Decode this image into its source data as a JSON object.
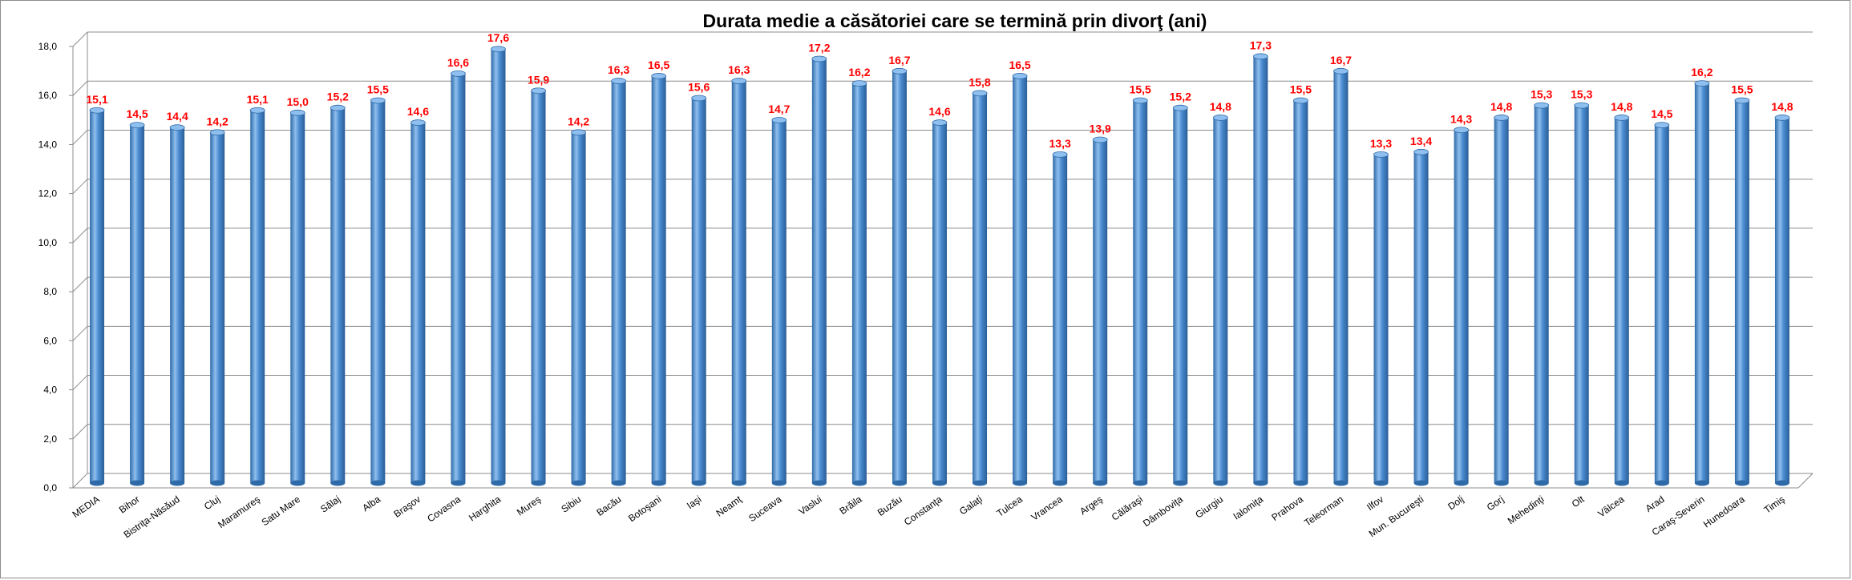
{
  "chart_data": {
    "type": "bar",
    "title": "Durata medie a căsătoriei care se termină prin divorţ (ani)",
    "xlabel": "",
    "ylabel": "",
    "ylim": [
      0,
      18
    ],
    "ytick_step": 2,
    "yticks": [
      "0,0",
      "2,0",
      "4,0",
      "6,0",
      "8,0",
      "10,0",
      "12,0",
      "14,0",
      "16,0",
      "18,0"
    ],
    "grid": true,
    "legend": "none",
    "colors": {
      "bar": "#4a8bd0",
      "bar_dark": "#2f6aa8",
      "bar_light": "#8fbfee",
      "label": "#ff0000",
      "grid": "#8c8c8c"
    },
    "categories": [
      "MEDIA",
      "Bihor",
      "Bistriţa-Năsăud",
      "Cluj",
      "Maramureş",
      "Satu Mare",
      "Sălaj",
      "Alba",
      "Braşov",
      "Covasna",
      "Harghita",
      "Mureş",
      "Sibiu",
      "Bacău",
      "Botoşani",
      "Iaşi",
      "Neamţ",
      "Suceava",
      "Vaslui",
      "Brăila",
      "Buzău",
      "Constanţa",
      "Galaţi",
      "Tulcea",
      "Vrancea",
      "Argeş",
      "Călăraşi",
      "Dâmboviţa",
      "Giurgiu",
      "Ialomiţa",
      "Prahova",
      "Teleorman",
      "Ilfov",
      "Mun. Bucureşti",
      "Dolj",
      "Gorj",
      "Mehedinţi",
      "Olt",
      "Vâlcea",
      "Arad",
      "Caraş-Severin",
      "Hunedoara",
      "Timiş"
    ],
    "values": [
      15.1,
      14.5,
      14.4,
      14.2,
      15.1,
      15.0,
      15.2,
      15.5,
      14.6,
      16.6,
      17.6,
      15.9,
      14.2,
      16.3,
      16.5,
      15.6,
      16.3,
      14.7,
      17.2,
      16.2,
      16.7,
      14.6,
      15.8,
      16.5,
      13.3,
      13.9,
      15.5,
      15.2,
      14.8,
      17.3,
      15.5,
      16.7,
      13.3,
      13.4,
      14.3,
      14.8,
      15.3,
      15.3,
      14.8,
      14.5,
      16.2,
      15.5,
      14.8
    ],
    "data_labels": [
      "15,1",
      "14,5",
      "14,4",
      "14,2",
      "15,1",
      "15,0",
      "15,2",
      "15,5",
      "14,6",
      "16,6",
      "17,6",
      "15,9",
      "14,2",
      "16,3",
      "16,5",
      "15,6",
      "16,3",
      "14,7",
      "17,2",
      "16,2",
      "16,7",
      "14,6",
      "15,8",
      "16,5",
      "13,3",
      "13,9",
      "15,5",
      "15,2",
      "14,8",
      "17,3",
      "15,5",
      "16,7",
      "13,3",
      "13,4",
      "14,3",
      "14,8",
      "15,3",
      "15,3",
      "14,8",
      "14,5",
      "16,2",
      "15,5",
      "14,8"
    ]
  }
}
